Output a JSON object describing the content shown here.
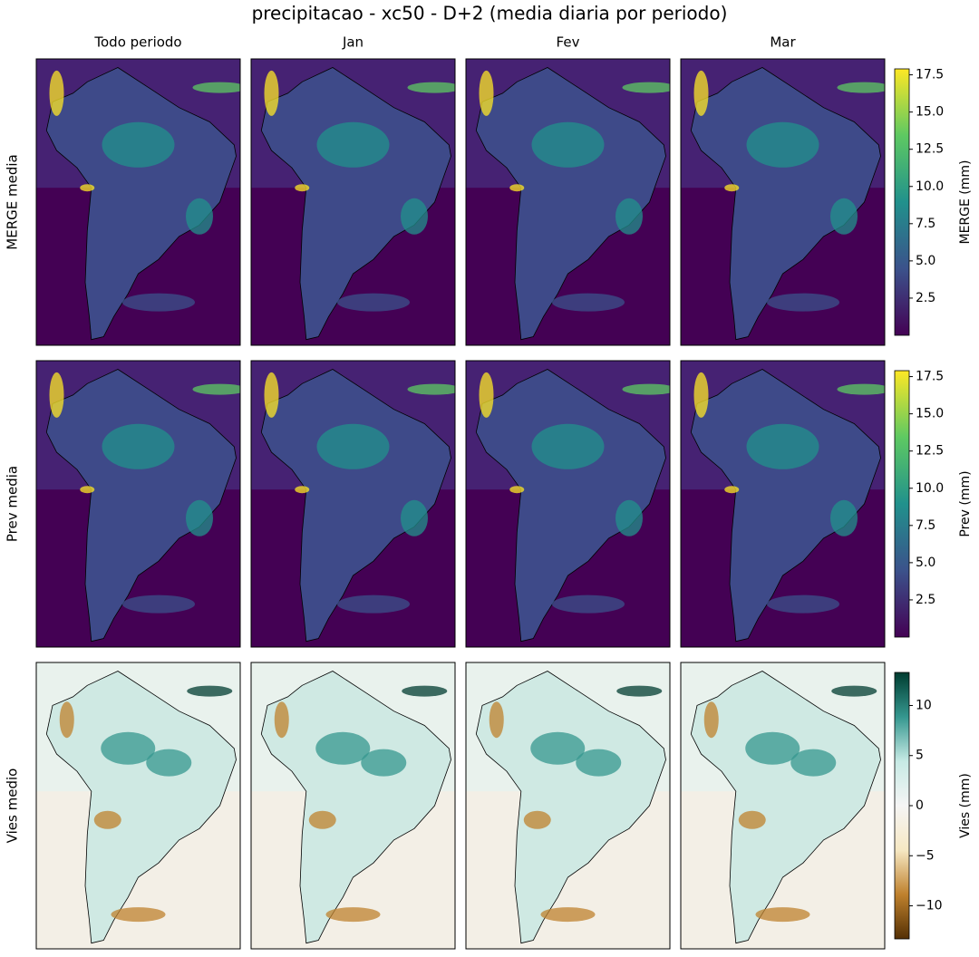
{
  "title": "precipitacao - xc50 - D+2 (media diaria por periodo)",
  "columns": [
    "Todo periodo",
    "Jan",
    "Fev",
    "Mar"
  ],
  "rows": [
    {
      "label": "MERGE media",
      "colorbar": {
        "label": "MERGE (mm)",
        "lim": [
          0,
          17.9
        ],
        "ticks": [
          2.5,
          {
            "value": 5,
            "label": "5.0"
          },
          7.5,
          {
            "value": 10,
            "label": "10.0"
          },
          12.5,
          {
            "value": 15,
            "label": "15.0"
          },
          17.5
        ],
        "colormap": [
          "#440154",
          "#3b528b",
          "#21918c",
          "#5ec962",
          "#fde725"
        ]
      }
    },
    {
      "label": "Prev media",
      "colorbar": {
        "label": "Prev (mm)",
        "lim": [
          0,
          17.9
        ],
        "ticks": [
          2.5,
          {
            "value": 5,
            "label": "5.0"
          },
          7.5,
          {
            "value": 10,
            "label": "10.0"
          },
          12.5,
          {
            "value": 15,
            "label": "15.0"
          },
          17.5
        ],
        "colormap": [
          "#440154",
          "#3b528b",
          "#21918c",
          "#5ec962",
          "#fde725"
        ]
      }
    },
    {
      "label": "Vies medio",
      "colorbar": {
        "label": "Vies (mm)",
        "lim": [
          -13.3,
          13.3
        ],
        "ticks": [
          {
            "value": -10,
            "label": "−10"
          },
          {
            "value": -5,
            "label": "−5"
          },
          0,
          5,
          10
        ],
        "colormap": [
          "#543005",
          "#bf812d",
          "#f6e8c3",
          "#f5f5f5",
          "#c7eae5",
          "#35978f",
          "#003c30"
        ]
      }
    }
  ]
}
